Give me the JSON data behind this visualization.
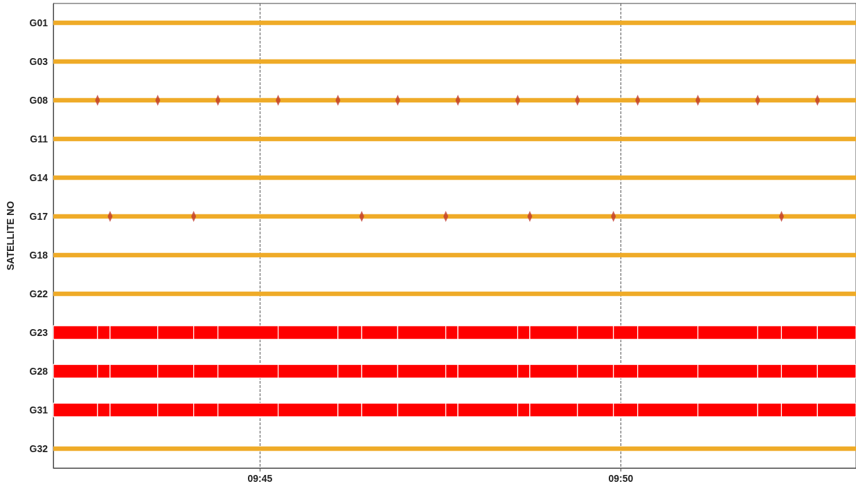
{
  "chart_data": {
    "type": "bar",
    "orientation": "horizontal",
    "ylabel": "SATELLITE NO",
    "categories": [
      "G01",
      "G03",
      "G08",
      "G11",
      "G14",
      "G17",
      "G18",
      "G22",
      "G23",
      "G28",
      "G31",
      "G32"
    ],
    "xlim": [
      9.7023,
      9.8876
    ],
    "xticks": [
      {
        "value": 9.75,
        "label": "09:45"
      },
      {
        "value": 9.8333,
        "label": "09:50"
      }
    ],
    "grid": "x",
    "marker": "diamond",
    "series": [
      {
        "color": "#efab28",
        "values": [
          0.1853,
          0.1853,
          0.1853,
          0.1853,
          0.1853,
          0.1853,
          0.1853,
          0.1853,
          null,
          null,
          null,
          0.1853
        ],
        "base": [
          9.7023,
          9.7023,
          9.7023,
          9.7023,
          9.7023,
          9.7023,
          9.7023,
          9.7023,
          null,
          null,
          null,
          9.7023
        ]
      },
      {
        "color": "#ff0000",
        "values": [
          null,
          null,
          null,
          null,
          null,
          null,
          null,
          null,
          0.0102,
          0.0102,
          0.0102,
          null
        ],
        "base": [
          null,
          null,
          null,
          null,
          null,
          null,
          null,
          null,
          9.7023,
          9.7023,
          9.7023,
          null
        ]
      },
      {
        "color": "#ff0000",
        "values": [
          null,
          null,
          null,
          null,
          null,
          null,
          null,
          null,
          0.0029,
          0.0029,
          0.0029,
          null
        ],
        "base": [
          null,
          null,
          null,
          null,
          null,
          null,
          null,
          null,
          9.7125,
          9.7125,
          9.7125,
          null
        ]
      },
      {
        "color": "#ff0000",
        "values": [
          null,
          null,
          null,
          null,
          null,
          null,
          null,
          null,
          0.011,
          0.011,
          0.011,
          null
        ],
        "base": [
          null,
          null,
          null,
          null,
          null,
          null,
          null,
          null,
          9.7154,
          9.7154,
          9.7154,
          null
        ]
      },
      {
        "color": "#ff0000",
        "values": [
          null,
          null,
          null,
          null,
          null,
          null,
          null,
          null,
          0.0083,
          0.0083,
          0.0083,
          null
        ],
        "base": [
          null,
          null,
          null,
          null,
          null,
          null,
          null,
          null,
          9.7264,
          9.7264,
          9.7264,
          null
        ]
      },
      {
        "color": "#ff0000",
        "values": [
          null,
          null,
          null,
          null,
          null,
          null,
          null,
          null,
          0.0056,
          0.0056,
          0.0056,
          null
        ],
        "base": [
          null,
          null,
          null,
          null,
          null,
          null,
          null,
          null,
          9.7347,
          9.7347,
          9.7347,
          null
        ]
      },
      {
        "color": "#ff0000",
        "values": [
          null,
          null,
          null,
          null,
          null,
          null,
          null,
          null,
          0.0139,
          0.0139,
          0.0139,
          null
        ],
        "base": [
          null,
          null,
          null,
          null,
          null,
          null,
          null,
          null,
          9.7403,
          9.7403,
          9.7403,
          null
        ]
      },
      {
        "color": "#ff0000",
        "values": [
          null,
          null,
          null,
          null,
          null,
          null,
          null,
          null,
          0.0138,
          0.0138,
          0.0138,
          null
        ],
        "base": [
          null,
          null,
          null,
          null,
          null,
          null,
          null,
          null,
          9.7542,
          9.7542,
          9.7542,
          null
        ]
      },
      {
        "color": "#ff0000",
        "values": [
          null,
          null,
          null,
          null,
          null,
          null,
          null,
          null,
          0.0055,
          0.0055,
          0.0055,
          null
        ],
        "base": [
          null,
          null,
          null,
          null,
          null,
          null,
          null,
          null,
          9.768,
          9.768,
          9.768,
          null
        ]
      },
      {
        "color": "#ff0000",
        "values": [
          null,
          null,
          null,
          null,
          null,
          null,
          null,
          null,
          0.0083,
          0.0083,
          0.0083,
          null
        ],
        "base": [
          null,
          null,
          null,
          null,
          null,
          null,
          null,
          null,
          9.7735,
          9.7735,
          9.7735,
          null
        ]
      },
      {
        "color": "#ff0000",
        "values": [
          null,
          null,
          null,
          null,
          null,
          null,
          null,
          null,
          0.0111,
          0.0111,
          0.0111,
          null
        ],
        "base": [
          null,
          null,
          null,
          null,
          null,
          null,
          null,
          null,
          9.7818,
          9.7818,
          9.7818,
          null
        ]
      },
      {
        "color": "#ff0000",
        "values": [
          null,
          null,
          null,
          null,
          null,
          null,
          null,
          null,
          0.0028,
          0.0028,
          0.0028,
          null
        ],
        "base": [
          null,
          null,
          null,
          null,
          null,
          null,
          null,
          null,
          9.7929,
          9.7929,
          9.7929,
          null
        ]
      },
      {
        "color": "#ff0000",
        "values": [
          null,
          null,
          null,
          null,
          null,
          null,
          null,
          null,
          0.0138,
          0.0138,
          0.0138,
          null
        ],
        "base": [
          null,
          null,
          null,
          null,
          null,
          null,
          null,
          null,
          9.7957,
          9.7957,
          9.7957,
          null
        ]
      },
      {
        "color": "#ff0000",
        "values": [
          null,
          null,
          null,
          null,
          null,
          null,
          null,
          null,
          0.0028,
          0.0028,
          0.0028,
          null
        ],
        "base": [
          null,
          null,
          null,
          null,
          null,
          null,
          null,
          null,
          9.8095,
          9.8095,
          9.8095,
          null
        ]
      },
      {
        "color": "#ff0000",
        "values": [
          null,
          null,
          null,
          null,
          null,
          null,
          null,
          null,
          0.011,
          0.011,
          0.011,
          null
        ],
        "base": [
          null,
          null,
          null,
          null,
          null,
          null,
          null,
          null,
          9.8123,
          9.8123,
          9.8123,
          null
        ]
      },
      {
        "color": "#ff0000",
        "values": [
          null,
          null,
          null,
          null,
          null,
          null,
          null,
          null,
          0.0083,
          0.0083,
          0.0083,
          null
        ],
        "base": [
          null,
          null,
          null,
          null,
          null,
          null,
          null,
          null,
          9.8233,
          9.8233,
          9.8233,
          null
        ]
      },
      {
        "color": "#ff0000",
        "values": [
          null,
          null,
          null,
          null,
          null,
          null,
          null,
          null,
          0.0056,
          0.0056,
          0.0056,
          null
        ],
        "base": [
          null,
          null,
          null,
          null,
          null,
          null,
          null,
          null,
          9.8316,
          9.8316,
          9.8316,
          null
        ]
      },
      {
        "color": "#ff0000",
        "values": [
          null,
          null,
          null,
          null,
          null,
          null,
          null,
          null,
          0.0139,
          0.0139,
          0.0139,
          null
        ],
        "base": [
          null,
          null,
          null,
          null,
          null,
          null,
          null,
          null,
          9.8372,
          9.8372,
          9.8372,
          null
        ]
      },
      {
        "color": "#ff0000",
        "values": [
          null,
          null,
          null,
          null,
          null,
          null,
          null,
          null,
          0.0138,
          0.0138,
          0.0138,
          null
        ],
        "base": [
          null,
          null,
          null,
          null,
          null,
          null,
          null,
          null,
          9.8511,
          9.8511,
          9.8511,
          null
        ]
      },
      {
        "color": "#ff0000",
        "values": [
          null,
          null,
          null,
          null,
          null,
          null,
          null,
          null,
          0.0055,
          0.0055,
          0.0055,
          null
        ],
        "base": [
          null,
          null,
          null,
          null,
          null,
          null,
          null,
          null,
          9.8649,
          9.8649,
          9.8649,
          null
        ]
      },
      {
        "color": "#ff0000",
        "values": [
          null,
          null,
          null,
          null,
          null,
          null,
          null,
          null,
          0.0083,
          0.0083,
          0.0083,
          null
        ],
        "base": [
          null,
          null,
          null,
          null,
          null,
          null,
          null,
          null,
          9.8704,
          9.8704,
          9.8704,
          null
        ]
      },
      {
        "color": "#ff0000",
        "values": [
          null,
          null,
          null,
          null,
          null,
          null,
          null,
          null,
          0.0089,
          0.0089,
          0.0089,
          null
        ],
        "base": [
          null,
          null,
          null,
          null,
          null,
          null,
          null,
          null,
          9.8787,
          9.8787,
          9.8787,
          null
        ]
      },
      {
        "type": "scatter",
        "color": "#c0392b",
        "values": [
          null,
          null,
          9.7125,
          null,
          null,
          9.7154,
          null,
          null,
          null,
          null,
          null,
          null
        ]
      },
      {
        "type": "scatter",
        "color": "#c0392b",
        "values": [
          null,
          null,
          9.7264,
          null,
          null,
          9.7347,
          null,
          null,
          null,
          null,
          null,
          null
        ]
      },
      {
        "type": "scatter",
        "color": "#c0392b",
        "values": [
          null,
          null,
          9.7403,
          null,
          null,
          9.7735,
          null,
          null,
          null,
          null,
          null,
          null
        ]
      },
      {
        "type": "scatter",
        "color": "#c0392b",
        "values": [
          null,
          null,
          9.7542,
          null,
          null,
          9.7929,
          null,
          null,
          null,
          null,
          null,
          null
        ]
      },
      {
        "type": "scatter",
        "color": "#c0392b",
        "values": [
          null,
          null,
          9.768,
          null,
          null,
          9.8123,
          null,
          null,
          null,
          null,
          null,
          null
        ]
      },
      {
        "type": "scatter",
        "color": "#c0392b",
        "values": [
          null,
          null,
          9.7818,
          null,
          null,
          9.8316,
          null,
          null,
          null,
          null,
          null,
          null
        ]
      },
      {
        "type": "scatter",
        "color": "#c0392b",
        "values": [
          null,
          null,
          9.7957,
          null,
          null,
          9.8704,
          null,
          null,
          null,
          null,
          null,
          null
        ]
      },
      {
        "type": "scatter",
        "color": "#c0392b",
        "values": [
          null,
          null,
          9.8095,
          null,
          null,
          null,
          null,
          null,
          null,
          null,
          null,
          null
        ]
      },
      {
        "type": "scatter",
        "color": "#c0392b",
        "values": [
          null,
          null,
          9.8233,
          null,
          null,
          null,
          null,
          null,
          null,
          null,
          null,
          null
        ]
      },
      {
        "type": "scatter",
        "color": "#c0392b",
        "values": [
          null,
          null,
          9.8372,
          null,
          null,
          null,
          null,
          null,
          null,
          null,
          null,
          null
        ]
      },
      {
        "type": "scatter",
        "color": "#c0392b",
        "values": [
          null,
          null,
          9.8511,
          null,
          null,
          null,
          null,
          null,
          null,
          null,
          null,
          null
        ]
      },
      {
        "type": "scatter",
        "color": "#c0392b",
        "values": [
          null,
          null,
          9.8649,
          null,
          null,
          null,
          null,
          null,
          null,
          null,
          null,
          null
        ]
      },
      {
        "type": "scatter",
        "color": "#c0392b",
        "values": [
          null,
          null,
          9.8787,
          null,
          null,
          null,
          null,
          null,
          null,
          null,
          null,
          null
        ]
      }
    ]
  }
}
